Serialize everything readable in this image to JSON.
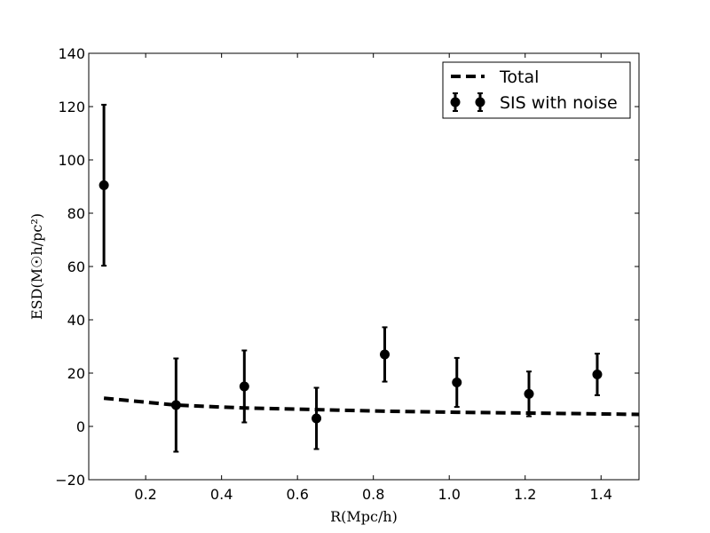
{
  "chart_data": {
    "type": "scatter",
    "title": "",
    "xlabel": "R(Mpc/h)",
    "ylabel": "ESD(M☉h/pc²)",
    "xlim": [
      0.05,
      1.5
    ],
    "ylim": [
      -20,
      140
    ],
    "xticks": [
      0.2,
      0.4,
      0.6,
      0.8,
      1.0,
      1.2,
      1.4
    ],
    "xtick_labels": [
      "0.2",
      "0.4",
      "0.6",
      "0.8",
      "1.0",
      "1.2",
      "1.4"
    ],
    "yticks": [
      -20,
      0,
      20,
      40,
      60,
      80,
      100,
      120,
      140
    ],
    "ytick_labels": [
      "−20",
      "0",
      "20",
      "40",
      "60",
      "80",
      "100",
      "120",
      "140"
    ],
    "grid": false,
    "legend_position": "top-right",
    "series": [
      {
        "name": "Total",
        "kind": "line",
        "style": "dashed",
        "color": "#000000",
        "x": [
          0.09,
          0.28,
          0.46,
          0.65,
          0.83,
          1.02,
          1.21,
          1.39,
          1.5
        ],
        "y": [
          10.6,
          8.0,
          6.9,
          6.3,
          5.7,
          5.3,
          5.0,
          4.7,
          4.5
        ]
      },
      {
        "name": "SIS with noise",
        "kind": "errorbar",
        "color": "#000000",
        "x": [
          0.09,
          0.28,
          0.46,
          0.65,
          0.83,
          1.02,
          1.21,
          1.39
        ],
        "y": [
          90.5,
          8.0,
          15.0,
          3.0,
          27.0,
          16.5,
          12.2,
          19.5
        ],
        "err": [
          30.2,
          17.5,
          13.5,
          11.5,
          10.2,
          9.2,
          8.4,
          7.8
        ]
      }
    ]
  }
}
